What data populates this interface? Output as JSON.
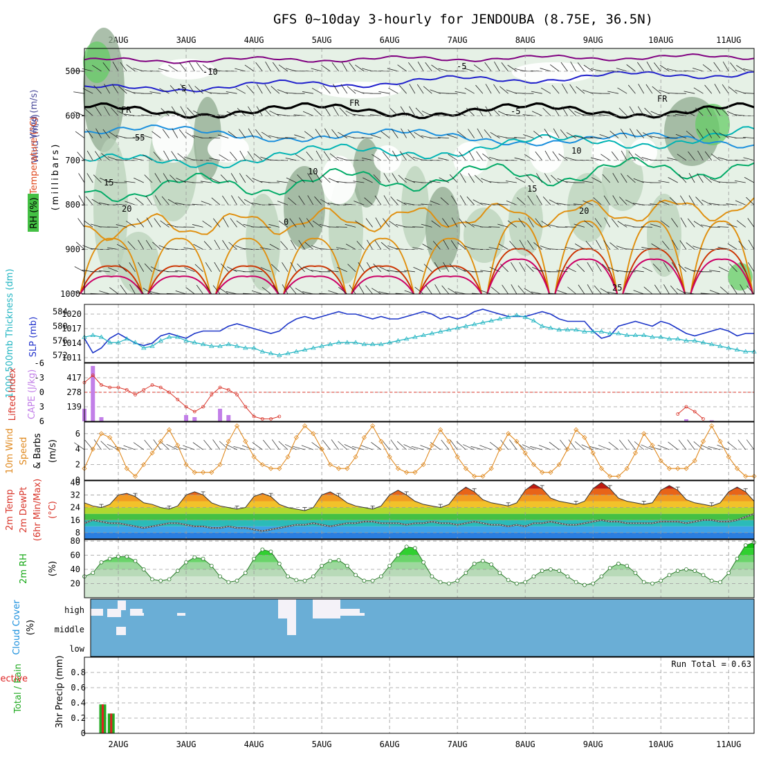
{
  "title": "GFS 0~10day 3-hourly for JENDOUBA (8.75E, 36.5N)",
  "colors": {
    "rh_light": "#e3f0e3",
    "rh_mid": "#b9d2b9",
    "rh_dark": "#8fa98f",
    "rh_green": "#66cc66",
    "iso_neg10": "#800080",
    "iso_neg5": "#2020cc",
    "iso_freeze": "#000000",
    "iso_5": "#1a8fdd",
    "iso_10": "#00b3b3",
    "iso_15": "#00aa66",
    "iso_20": "#e09010",
    "iso_25": "#cc3300",
    "iso_30": "#cc0066",
    "slp": "#1c35c8",
    "thickness": "#22b5c2",
    "lifted": "#d9352a",
    "cape": "#c27fe8",
    "wind": "#e08a20",
    "temp": "#f08a16",
    "dewpt": "#8a8aa0",
    "rh2m": "#16c416",
    "cloud": "#6aaed6",
    "precip_total": "#22aa22",
    "precip_conv": "#dd2222"
  },
  "days": [
    "2AUG",
    "3AUG",
    "4AUG",
    "5AUG",
    "6AUG",
    "7AUG",
    "8AUG",
    "9AUG",
    "10AUG",
    "11AUG"
  ],
  "panels": {
    "upper": {
      "ylabel_rh": "RH (%)",
      "ylabel_temp": "Temperature (°C)",
      "ylabel_wind": "Wind (m/s)",
      "ylabel_mb": "(millibars)",
      "yticks": [
        "500",
        "600",
        "700",
        "800",
        "900",
        "1000"
      ],
      "contour_labels": [
        "-10",
        "-5",
        "-5",
        "-5",
        "-5",
        "FR",
        "FR",
        "FR",
        "5",
        "10",
        "10",
        "15",
        "15",
        "20",
        "20",
        "25",
        "0"
      ]
    },
    "thickness": {
      "ylabel_left": "1000-500mb Thickness (dm)",
      "ylabel_right": "SLP (mb)",
      "yticks_left": [
        "584",
        "580",
        "576",
        "572"
      ],
      "yticks_right": [
        "1020",
        "1017",
        "1014",
        "1011"
      ]
    },
    "stability": {
      "ylabel_left": "Lifted Index",
      "ylabel_right": "CAPE (J/kg)",
      "yticks_left": [
        "-6",
        "-3",
        "0",
        "3",
        "6"
      ],
      "yticks_right": [
        "417",
        "278",
        "139"
      ]
    },
    "wind10m": {
      "ylabel_1": "10m Wind",
      "ylabel_2": "Speed",
      "ylabel_3": "& Barbs",
      "ylabel_4": "(m/s)",
      "yticks": [
        "6",
        "4",
        "2",
        "0"
      ]
    },
    "temp2m": {
      "ylabel_1": "2m Temp",
      "ylabel_2": "2m DewPt",
      "ylabel_3": "(6hr Min/Max)",
      "ylabel_4": "(°C)",
      "yticks": [
        "40",
        "32",
        "24",
        "16",
        "8"
      ]
    },
    "rh2m": {
      "ylabel_1": "2m RH",
      "ylabel_2": "(%)",
      "yticks": [
        "80",
        "60",
        "40",
        "20"
      ]
    },
    "cloud": {
      "ylabel_1": "Cloud Cover",
      "ylabel_2": "(%)",
      "levels": [
        "high",
        "middle",
        "low"
      ]
    },
    "precip": {
      "ylabel_total": "Total / Rain",
      "ylabel_conv": "Convective",
      "ylabel_axis": "3hr Precip (mm)",
      "yticks": [
        "0.8",
        "0.6",
        "0.4",
        "0.2",
        "0"
      ],
      "run_total": "Run Total = 0.63"
    }
  },
  "chart_data": [
    {
      "type": "line",
      "title": "1000-500mb Thickness (dm) / SLP (mb)",
      "x": "3-hourly steps from 1AUG 12Z to 11AUG 09Z (80 steps)",
      "series": [
        {
          "name": "SLP (mb)",
          "axis": "right",
          "ylim": [
            1010,
            1022
          ],
          "values": [
            1015.0,
            1012.0,
            1013.0,
            1015.0,
            1016.0,
            1015.0,
            1014.0,
            1013.5,
            1014.0,
            1015.5,
            1016.0,
            1015.5,
            1015.0,
            1016.0,
            1016.5,
            1016.5,
            1016.5,
            1017.5,
            1018.0,
            1017.5,
            1017.0,
            1016.5,
            1016.0,
            1016.5,
            1018.0,
            1019.0,
            1019.5,
            1019.0,
            1019.5,
            1020.0,
            1020.5,
            1020.0,
            1020.0,
            1019.5,
            1019.0,
            1019.5,
            1019.0,
            1019.0,
            1019.5,
            1020.0,
            1020.5,
            1020.0,
            1019.0,
            1019.5,
            1019.0,
            1019.5,
            1020.5,
            1021.0,
            1020.5,
            1020.0,
            1019.5,
            1019.5,
            1019.5,
            1020.0,
            1020.5,
            1020.0,
            1019.0,
            1018.5,
            1018.5,
            1018.5,
            1016.5,
            1015.0,
            1015.5,
            1017.5,
            1018.0,
            1018.5,
            1018.0,
            1017.5,
            1018.5,
            1018.0,
            1017.0,
            1016.0,
            1015.5,
            1016.0,
            1016.5,
            1017.0,
            1016.5,
            1015.5,
            1016.0,
            1016.0
          ]
        },
        {
          "name": "1000-500mb Thickness (dm)",
          "axis": "left",
          "ylim": [
            570,
            586
          ],
          "values": [
            577.0,
            577.5,
            577.0,
            575.5,
            575.5,
            576.5,
            575.5,
            574.0,
            574.5,
            576.0,
            577.0,
            577.0,
            576.0,
            575.5,
            575.0,
            574.5,
            574.5,
            575.0,
            574.5,
            574.0,
            574.0,
            573.0,
            572.5,
            572.0,
            572.5,
            573.0,
            573.5,
            574.0,
            574.5,
            575.0,
            575.5,
            575.5,
            575.5,
            575.0,
            575.0,
            575.0,
            575.5,
            576.0,
            576.5,
            577.0,
            577.5,
            578.0,
            578.5,
            579.0,
            579.5,
            580.0,
            580.5,
            581.0,
            581.5,
            582.0,
            582.5,
            583.0,
            582.5,
            581.5,
            580.0,
            579.5,
            579.0,
            579.0,
            579.0,
            578.5,
            578.5,
            578.5,
            578.0,
            578.0,
            577.5,
            577.5,
            577.5,
            577.0,
            577.0,
            576.5,
            576.5,
            576.0,
            576.0,
            575.5,
            575.0,
            574.5,
            574.0,
            573.5,
            573.0,
            573.0
          ]
        }
      ]
    },
    {
      "type": "line",
      "title": "Lifted Index / CAPE (J/kg)",
      "series": [
        {
          "name": "Lifted Index",
          "axis": "left",
          "ylim": [
            6,
            -6
          ],
          "values": [
            -2.0,
            -3.5,
            -1.5,
            -1.0,
            -1.0,
            -0.5,
            0.5,
            -0.5,
            -1.5,
            -1.0,
            0.0,
            1.5,
            3.0,
            4.0,
            3.0,
            0.5,
            -1.0,
            -0.5,
            0.5,
            3.0,
            5.0,
            5.5,
            5.5,
            5.0,
            6,
            6,
            6,
            6,
            6,
            6,
            6,
            6,
            6,
            6,
            6,
            6,
            6,
            6,
            6,
            6,
            6,
            6,
            6,
            6,
            6,
            6,
            6,
            6,
            6,
            6,
            6,
            6,
            6,
            6,
            6,
            6,
            6,
            6,
            6,
            6,
            6,
            6,
            6,
            6,
            6,
            6,
            6,
            6,
            6,
            6,
            4.5,
            3.0,
            4.0,
            5.5,
            6,
            6,
            6,
            6,
            6,
            6
          ]
        },
        {
          "name": "CAPE (J/kg)",
          "type": "bar",
          "axis": "right",
          "ylim": [
            0,
            556
          ],
          "values": [
            120,
            530,
            40,
            0,
            0,
            0,
            0,
            0,
            0,
            0,
            0,
            0,
            0,
            0,
            0,
            0,
            0,
            0,
            0,
            0,
            0,
            0,
            0,
            0,
            0,
            0,
            0,
            0,
            0,
            0,
            0,
            0,
            0,
            0,
            0,
            0,
            0,
            0,
            0,
            0,
            0,
            0,
            0,
            0,
            0,
            0,
            0,
            0,
            0,
            0,
            0,
            0,
            0,
            0,
            0,
            0,
            0,
            0,
            0,
            0,
            0,
            0,
            0,
            0,
            0,
            0,
            0,
            0,
            0,
            0,
            0,
            0,
            0,
            0,
            0,
            0,
            0,
            0,
            0,
            0
          ]
        }
      ]
    },
    {
      "type": "line",
      "title": "10m Wind Speed (m/s)",
      "ylim": [
        0,
        7.5
      ],
      "series": [
        {
          "name": "Speed",
          "values": [
            1.5,
            4.0,
            6.0,
            5.5,
            4.0,
            1.5,
            0.5,
            2.0,
            3.5,
            5.0,
            6.5,
            4.5,
            2.0,
            1.0,
            1.0,
            1.0,
            2.0,
            5.0,
            7.0,
            5.0,
            3.0,
            2.0,
            1.5,
            1.5,
            3.0,
            5.5,
            7.0,
            6.0,
            4.0,
            2.0,
            1.5,
            1.5,
            3.0,
            5.5,
            7.0,
            5.0,
            3.0,
            1.5,
            1.0,
            1.0,
            2.0,
            4.5,
            6.5,
            5.0,
            3.0,
            1.5,
            0.5,
            0.5,
            1.5,
            4.0,
            6.0,
            5.0,
            3.5,
            2.0,
            1.0,
            1.0,
            2.0,
            4.0,
            6.5,
            5.5,
            3.5,
            1.5,
            0.5,
            0.5,
            1.5,
            3.5,
            6.0,
            4.5,
            2.5,
            1.5,
            1.5,
            1.5,
            2.5,
            5.0,
            7.0,
            5.0,
            3.0,
            1.5,
            0.5,
            0.5
          ]
        }
      ]
    },
    {
      "type": "area",
      "title": "2m Temp / 2m DewPt (°C)",
      "ylim": [
        4,
        41
      ],
      "series": [
        {
          "name": "2m Temp",
          "values": [
            27,
            25,
            24,
            26,
            32,
            33,
            31,
            27,
            26,
            24,
            23,
            25,
            32,
            34,
            32,
            27,
            25,
            24,
            23,
            24,
            31,
            33,
            31,
            26,
            24,
            23,
            22,
            24,
            32,
            34,
            31,
            27,
            25,
            24,
            23,
            25,
            32,
            35,
            32,
            28,
            26,
            25,
            24,
            26,
            33,
            37,
            34,
            29,
            27,
            26,
            25,
            27,
            35,
            39,
            36,
            30,
            28,
            27,
            26,
            28,
            36,
            40,
            36,
            30,
            28,
            27,
            26,
            27,
            35,
            38,
            35,
            29,
            27,
            26,
            25,
            27,
            34,
            37,
            34,
            28
          ]
        },
        {
          "name": "2m DewPt",
          "values": [
            14,
            16,
            15,
            14,
            14,
            13,
            12,
            11,
            12,
            13,
            14,
            14,
            13,
            12,
            12,
            11,
            11,
            12,
            11,
            11,
            10,
            9,
            10,
            11,
            12,
            13,
            13,
            14,
            13,
            12,
            13,
            14,
            14,
            15,
            15,
            14,
            14,
            14,
            13,
            14,
            14,
            15,
            14,
            14,
            13,
            14,
            15,
            14,
            13,
            13,
            12,
            13,
            12,
            14,
            14,
            15,
            14,
            13,
            13,
            14,
            15,
            16,
            15,
            15,
            14,
            14,
            14,
            14,
            15,
            15,
            15,
            14,
            15,
            16,
            16,
            15,
            15,
            16,
            18,
            20
          ]
        }
      ]
    },
    {
      "type": "area",
      "title": "2m RH (%)",
      "ylim": [
        0,
        82
      ],
      "series": [
        {
          "name": "2m RH",
          "values": [
            30,
            35,
            50,
            55,
            58,
            58,
            52,
            40,
            26,
            24,
            26,
            38,
            50,
            57,
            55,
            45,
            30,
            22,
            24,
            35,
            55,
            68,
            65,
            48,
            30,
            25,
            24,
            30,
            45,
            52,
            53,
            45,
            32,
            24,
            24,
            30,
            45,
            60,
            72,
            70,
            50,
            30,
            22,
            20,
            24,
            35,
            48,
            52,
            47,
            35,
            25,
            20,
            22,
            30,
            38,
            40,
            38,
            30,
            22,
            18,
            20,
            30,
            42,
            48,
            45,
            35,
            22,
            20,
            24,
            32,
            38,
            40,
            38,
            32,
            24,
            22,
            35,
            55,
            74,
            78
          ]
        }
      ]
    },
    {
      "type": "bar",
      "title": "3hr Precip (mm)",
      "ylim": [
        0,
        1.0
      ],
      "series": [
        {
          "name": "Total / Rain",
          "values": [
            0.38,
            0.26
          ]
        },
        {
          "name": "Convective",
          "values": [
            0.38,
            0.26
          ]
        }
      ]
    }
  ]
}
